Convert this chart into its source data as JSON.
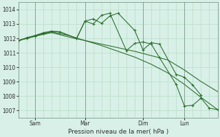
{
  "xlabel": "Pression niveau de la mer( hPa )",
  "bg_color": "#d8f0e8",
  "grid_color": "#b0d8c0",
  "line_color": "#2d6e2d",
  "marker_color": "#2d6e2d",
  "ylim": [
    1006.5,
    1014.5
  ],
  "xlim": [
    0,
    96
  ],
  "xtick_positions": [
    8,
    32,
    60,
    80
  ],
  "xtick_labels": [
    "Sam",
    "Mar",
    "Dim",
    "Lun"
  ],
  "ytick_positions": [
    1007,
    1008,
    1009,
    1010,
    1011,
    1012,
    1013,
    1014
  ],
  "series1_x": [
    0,
    8,
    16,
    24,
    32,
    40,
    48,
    56,
    64,
    72,
    80,
    88,
    96
  ],
  "series1_y": [
    1011.85,
    1012.15,
    1012.4,
    1012.1,
    1011.85,
    1011.6,
    1011.35,
    1011.1,
    1010.8,
    1010.5,
    1009.8,
    1009.0,
    1008.3
  ],
  "series2_x": [
    0,
    8,
    16,
    24,
    32,
    40,
    48,
    56,
    64,
    72,
    80,
    88,
    96
  ],
  "series2_y": [
    1011.85,
    1012.2,
    1012.45,
    1012.2,
    1011.85,
    1011.5,
    1011.1,
    1010.7,
    1010.2,
    1009.6,
    1008.8,
    1007.9,
    1007.05
  ],
  "series3_x": [
    0,
    4,
    8,
    12,
    16,
    20,
    28,
    32,
    36,
    40,
    44,
    48,
    56,
    60,
    64,
    68,
    76,
    80,
    84,
    88
  ],
  "series3_y": [
    1011.85,
    1012.05,
    1012.2,
    1012.4,
    1012.5,
    1012.45,
    1012.0,
    1013.2,
    1013.35,
    1013.05,
    1013.55,
    1013.75,
    1012.55,
    1011.2,
    1011.7,
    1011.6,
    1009.5,
    1009.3,
    1008.75,
    1008.05
  ],
  "series4_x": [
    0,
    4,
    8,
    12,
    16,
    20,
    28,
    32,
    36,
    40,
    44,
    52,
    56,
    60,
    64,
    68,
    76,
    80,
    84,
    88,
    92,
    96
  ],
  "series4_y": [
    1011.85,
    1012.0,
    1012.15,
    1012.35,
    1012.5,
    1012.45,
    1012.0,
    1013.2,
    1013.0,
    1013.6,
    1013.75,
    1011.15,
    1011.65,
    1011.75,
    1011.6,
    1010.65,
    1008.8,
    1007.3,
    1007.35,
    1007.85,
    1007.15,
    1007.05
  ]
}
